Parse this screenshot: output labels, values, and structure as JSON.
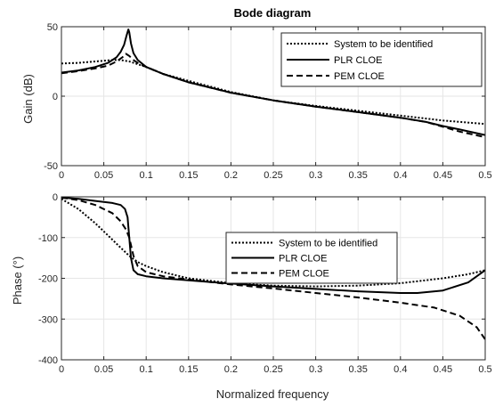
{
  "chart_data": [
    {
      "type": "line",
      "title": "Bode diagram",
      "xlabel": "",
      "ylabel": "Gain (dB)",
      "xlim": [
        0,
        0.5
      ],
      "ylim": [
        -50,
        50
      ],
      "xticks": [
        "0",
        "0.05",
        "0.1",
        "0.15",
        "0.2",
        "0.25",
        "0.3",
        "0.35",
        "0.4",
        "0.45",
        "0.5"
      ],
      "yticks": [
        "-50",
        "0",
        "50"
      ],
      "grid": true,
      "legend_position": "top-right",
      "series": [
        {
          "name": "System to be identified",
          "style": "dotted",
          "x": [
            0,
            0.02,
            0.04,
            0.06,
            0.07,
            0.08,
            0.09,
            0.1,
            0.12,
            0.15,
            0.2,
            0.25,
            0.3,
            0.35,
            0.4,
            0.45,
            0.5
          ],
          "y": [
            23.5,
            24,
            25,
            26,
            26,
            25,
            23,
            21,
            16,
            11,
            3,
            -3,
            -7,
            -10.5,
            -14,
            -17.5,
            -20
          ]
        },
        {
          "name": "PLR CLOE",
          "style": "solid",
          "x": [
            0,
            0.02,
            0.04,
            0.055,
            0.065,
            0.07,
            0.074,
            0.077,
            0.079,
            0.08,
            0.082,
            0.085,
            0.09,
            0.1,
            0.12,
            0.15,
            0.2,
            0.25,
            0.3,
            0.35,
            0.4,
            0.43,
            0.45,
            0.47,
            0.5
          ],
          "y": [
            17,
            18.5,
            21,
            24,
            28,
            32,
            37,
            44,
            48,
            46,
            38,
            31,
            26,
            21,
            16,
            10,
            2.5,
            -3,
            -7.5,
            -11.5,
            -15.5,
            -18.5,
            -21.5,
            -24,
            -28
          ]
        },
        {
          "name": "PEM CLOE",
          "style": "dashed",
          "x": [
            0,
            0.02,
            0.04,
            0.055,
            0.065,
            0.072,
            0.076,
            0.08,
            0.085,
            0.09,
            0.1,
            0.12,
            0.15,
            0.2,
            0.25,
            0.3,
            0.35,
            0.4,
            0.43,
            0.45,
            0.47,
            0.5
          ],
          "y": [
            16.5,
            18,
            20,
            22,
            25,
            28,
            30.5,
            29,
            26,
            24,
            21,
            16,
            10,
            2.5,
            -3,
            -7.5,
            -11.5,
            -15.5,
            -18.5,
            -22,
            -25.5,
            -29.5
          ]
        }
      ]
    },
    {
      "type": "line",
      "title": "",
      "xlabel": "Normalized frequency",
      "ylabel": "Phase (°)",
      "xlim": [
        0,
        0.5
      ],
      "ylim": [
        -400,
        0
      ],
      "xticks": [
        "0",
        "0.05",
        "0.1",
        "0.15",
        "0.2",
        "0.25",
        "0.3",
        "0.35",
        "0.4",
        "0.45",
        "0.5"
      ],
      "yticks": [
        "-400",
        "-300",
        "-200",
        "-100",
        "0"
      ],
      "grid": true,
      "legend_position": "top-right",
      "series": [
        {
          "name": "System to be identified",
          "style": "dotted",
          "x": [
            0,
            0.02,
            0.04,
            0.06,
            0.07,
            0.08,
            0.09,
            0.1,
            0.12,
            0.15,
            0.2,
            0.25,
            0.3,
            0.35,
            0.4,
            0.45,
            0.48,
            0.5
          ],
          "y": [
            -5,
            -30,
            -65,
            -105,
            -125,
            -145,
            -160,
            -170,
            -185,
            -200,
            -212,
            -218,
            -220,
            -218,
            -212,
            -200,
            -190,
            -180
          ]
        },
        {
          "name": "PLR CLOE",
          "style": "solid",
          "x": [
            0,
            0.02,
            0.04,
            0.06,
            0.07,
            0.075,
            0.078,
            0.08,
            0.082,
            0.085,
            0.09,
            0.1,
            0.12,
            0.15,
            0.2,
            0.25,
            0.3,
            0.35,
            0.4,
            0.42,
            0.45,
            0.48,
            0.5
          ],
          "y": [
            -2,
            -5,
            -10,
            -15,
            -20,
            -30,
            -50,
            -100,
            -150,
            -180,
            -190,
            -195,
            -200,
            -205,
            -213,
            -220,
            -226,
            -232,
            -236,
            -236,
            -230,
            -210,
            -180
          ]
        },
        {
          "name": "PEM CLOE",
          "style": "dashed",
          "x": [
            0,
            0.02,
            0.04,
            0.06,
            0.07,
            0.076,
            0.08,
            0.085,
            0.09,
            0.1,
            0.12,
            0.15,
            0.2,
            0.25,
            0.3,
            0.35,
            0.4,
            0.44,
            0.47,
            0.49,
            0.5
          ],
          "y": [
            -2,
            -8,
            -20,
            -40,
            -60,
            -80,
            -100,
            -145,
            -170,
            -185,
            -195,
            -203,
            -215,
            -225,
            -236,
            -247,
            -260,
            -272,
            -292,
            -320,
            -350
          ]
        }
      ]
    }
  ]
}
